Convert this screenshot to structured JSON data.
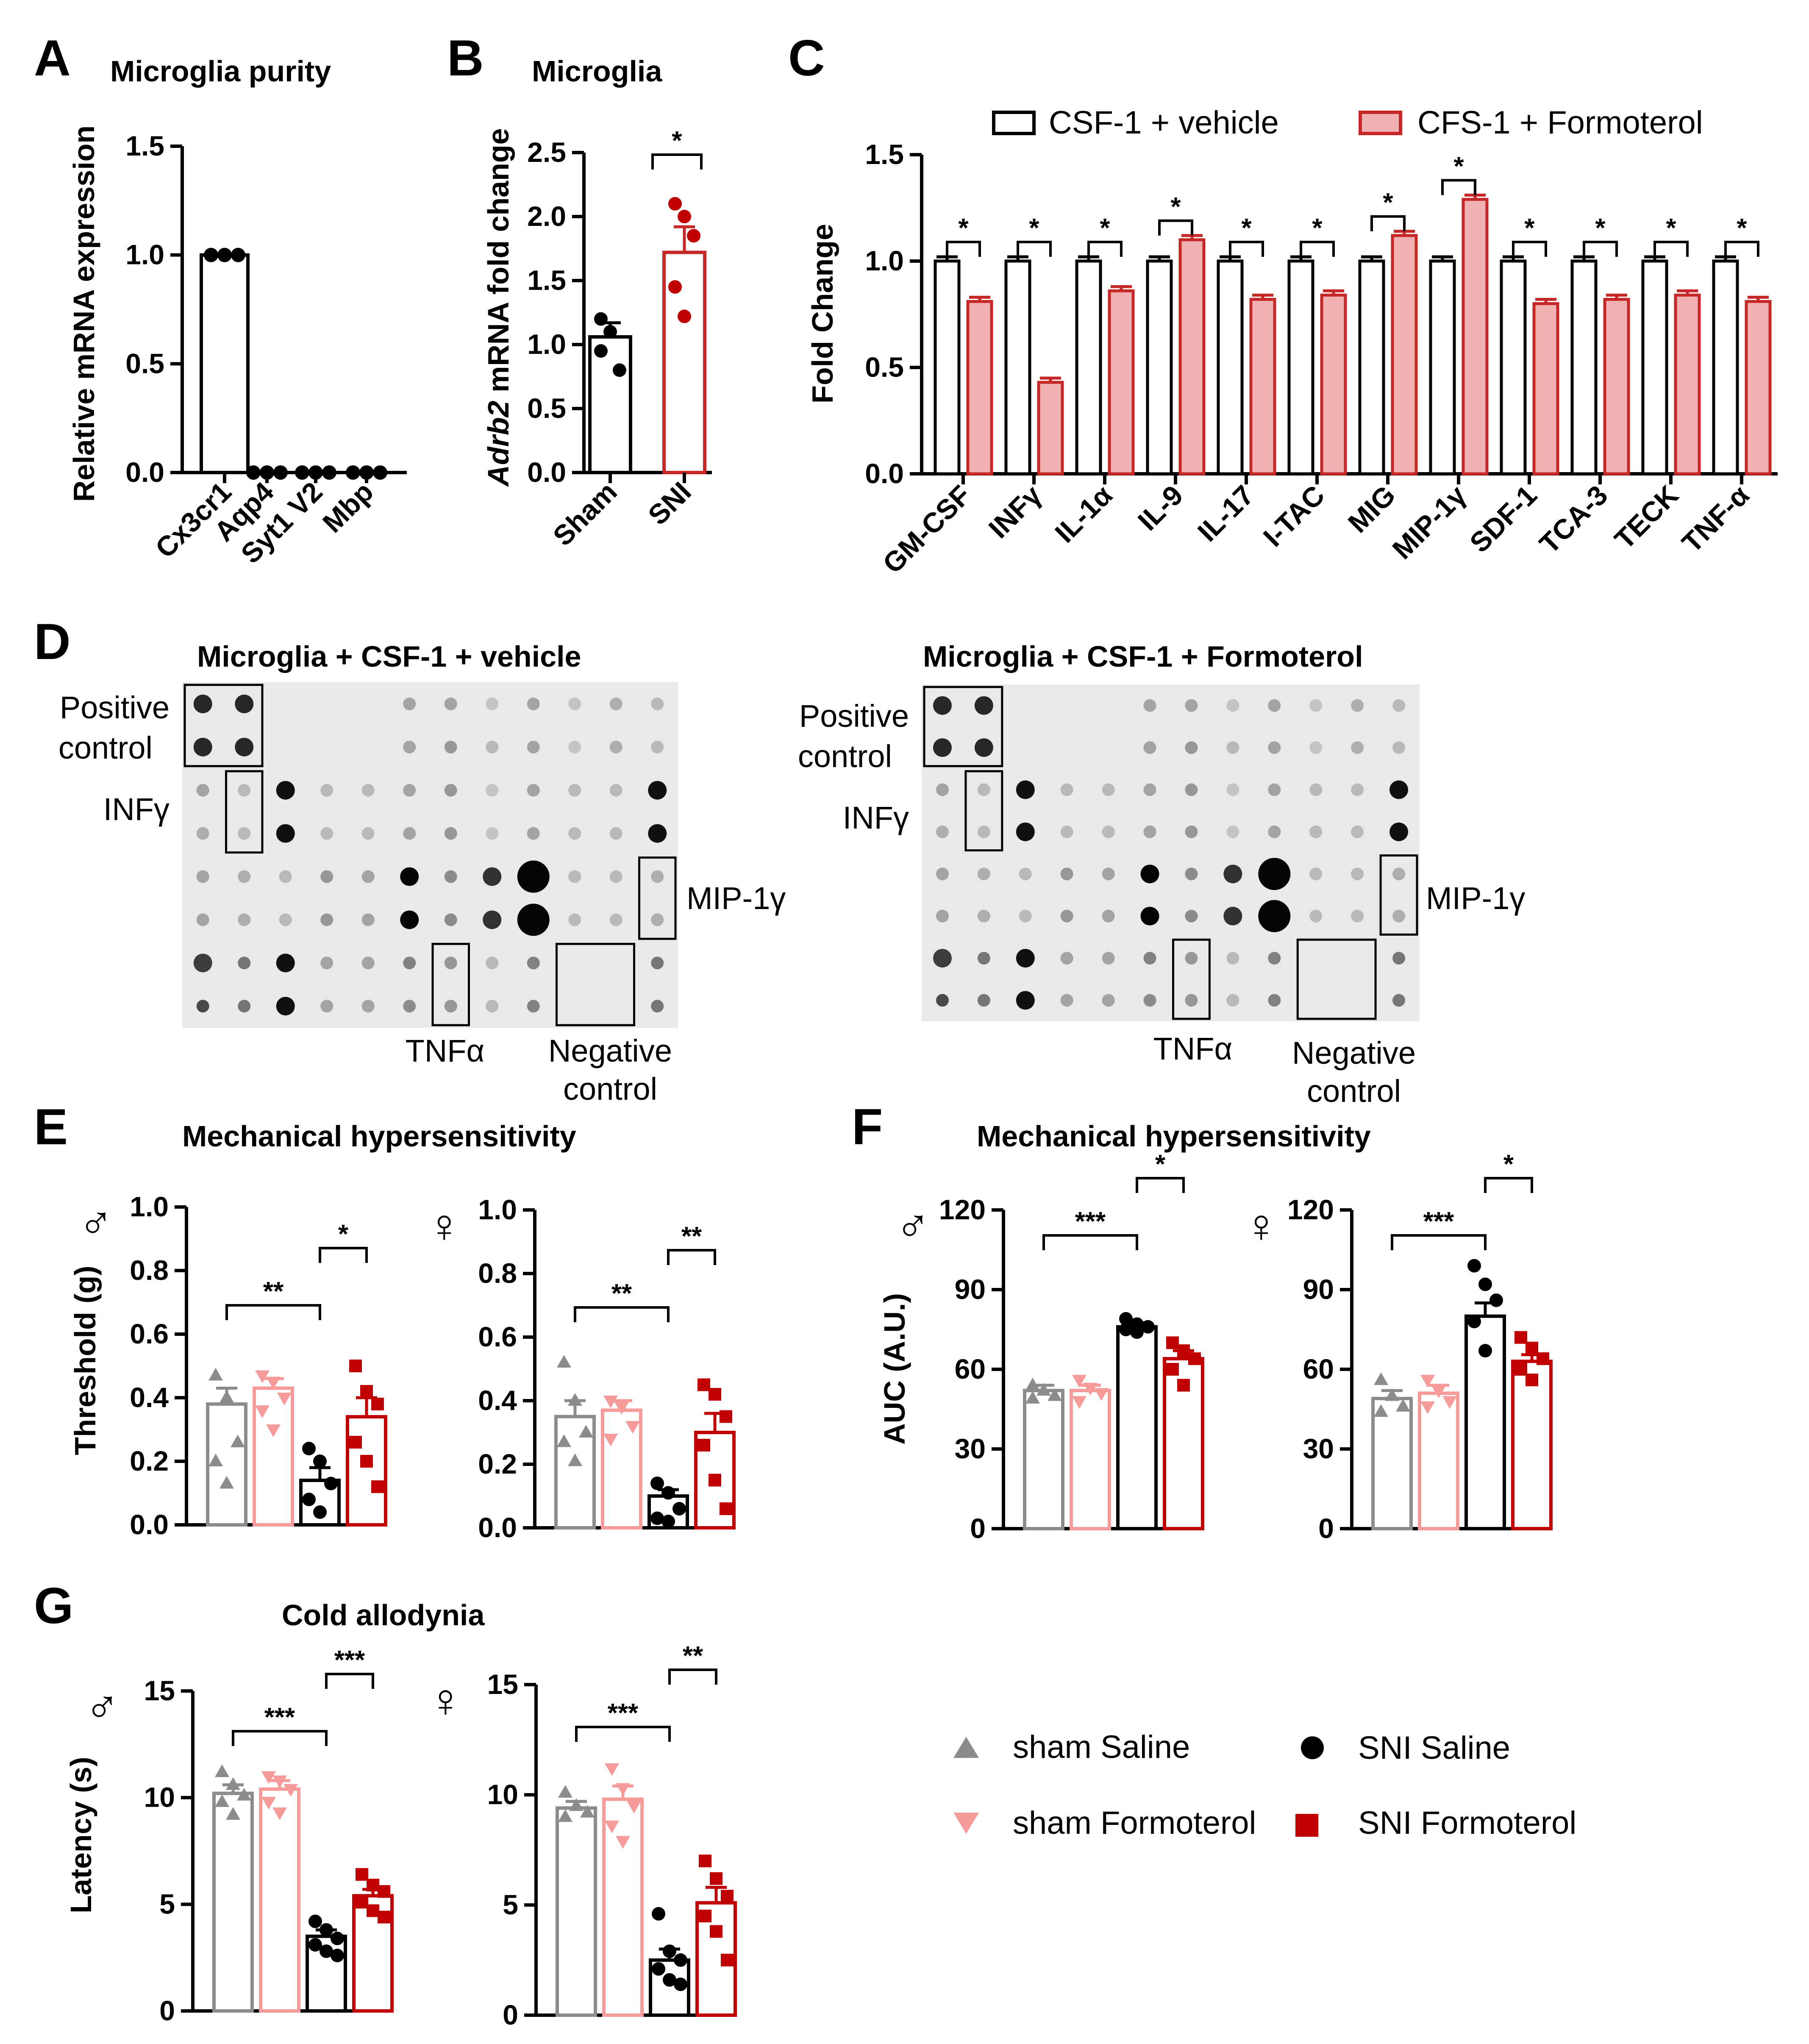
{
  "colors": {
    "sham_saline": "#8c8c8c",
    "sham_formoterol": "#f79a9a",
    "sni_saline": "#000000",
    "sni_formoterol": "#c00000",
    "bar_red": "#c62828",
    "bar_red_fill": "#f0b2b2"
  },
  "panels": {
    "A": "A",
    "B": "B",
    "C": "C",
    "D": "D",
    "E": "E",
    "F": "F",
    "G": "G"
  },
  "sex_symbols": {
    "male": "♂",
    "female": "♀"
  },
  "chart_data": [
    {
      "id": "A",
      "type": "bar",
      "title": "Microglia purity",
      "ylabel": "Relative mRNA expression",
      "ylim": [
        0,
        1.5
      ],
      "yticks": [
        "0.0",
        "0.5",
        "1.0",
        "1.5"
      ],
      "categories": [
        "Cx3cr1",
        "Aqp4",
        "Syt1 V2",
        "Mbp"
      ],
      "values": [
        1.0,
        0.0,
        0.0,
        0.0
      ],
      "points": [
        [
          1.0,
          1.0,
          1.0
        ],
        [
          0,
          0,
          0
        ],
        [
          0,
          0,
          0
        ],
        [
          0,
          0,
          0
        ]
      ]
    },
    {
      "id": "B",
      "type": "bar",
      "title": "Microglia",
      "ylabel_italic": "Adrb2",
      "ylabel": " mRNA fold change",
      "ylim": [
        0,
        2.5
      ],
      "yticks": [
        "0.0",
        "0.5",
        "1.0",
        "1.5",
        "2.0",
        "2.5"
      ],
      "categories": [
        "Sham",
        "SNI"
      ],
      "values": [
        1.06,
        1.72
      ],
      "errors": [
        0.11,
        0.2
      ],
      "points": [
        [
          1.2,
          1.1,
          0.8,
          0.95
        ],
        [
          2.1,
          2.0,
          1.85,
          1.45,
          1.22
        ]
      ],
      "significance": "*"
    },
    {
      "id": "C",
      "type": "bar",
      "ylabel": "Fold Change",
      "ylim": [
        0,
        1.5
      ],
      "yticks": [
        "0.0",
        "0.5",
        "1.0",
        "1.5"
      ],
      "legend": [
        "CSF-1 + vehicle",
        "CFS-1 + Formoterol"
      ],
      "categories": [
        "GM-CSF",
        "INFγ",
        "IL-1α",
        "IL-9",
        "IL-17",
        "I-TAC",
        "MIG",
        "MIP-1γ",
        "SDF-1",
        "TCA-3",
        "TECK",
        "TNF-α"
      ],
      "series": [
        {
          "name": "CSF-1 + vehicle",
          "values": [
            1.0,
            1.0,
            1.0,
            1.0,
            1.0,
            1.0,
            1.0,
            1.0,
            1.0,
            1.0,
            1.0,
            1.0
          ]
        },
        {
          "name": "CFS-1 + Formoterol",
          "values": [
            0.81,
            0.43,
            0.86,
            1.1,
            0.82,
            0.84,
            1.12,
            1.29,
            0.8,
            0.82,
            0.84,
            0.81
          ]
        }
      ],
      "significance": [
        "*",
        "*",
        "*",
        "*",
        "*",
        "*",
        "*",
        "*",
        "*",
        "*",
        "*",
        "*"
      ]
    },
    {
      "id": "E",
      "type": "bar",
      "title": "Mechanical hypersensitivity",
      "ylabel": "Threshold (g)",
      "groups": [
        "sham Saline",
        "sham Formoterol",
        "SNI Saline",
        "SNI Formoterol"
      ],
      "subplots": [
        {
          "sex": "male",
          "ylim": [
            0,
            1.0
          ],
          "yticks": [
            "0.0",
            "0.2",
            "0.4",
            "0.6",
            "0.8",
            "1.0"
          ],
          "values": [
            0.38,
            0.43,
            0.14,
            0.34
          ],
          "errors": [
            0.05,
            0.03,
            0.04,
            0.06
          ],
          "points": [
            [
              0.47,
              0.4,
              0.26,
              0.2,
              0.13
            ],
            [
              0.47,
              0.45,
              0.4,
              0.36,
              0.3
            ],
            [
              0.24,
              0.2,
              0.13,
              0.08,
              0.04
            ],
            [
              0.5,
              0.42,
              0.38,
              0.26,
              0.2,
              0.12
            ]
          ],
          "sig1": "**",
          "sig2": "*"
        },
        {
          "sex": "female",
          "ylim": [
            0,
            1.0
          ],
          "yticks": [
            "0.0",
            "0.2",
            "0.4",
            "0.6",
            "0.8",
            "1.0"
          ],
          "values": [
            0.35,
            0.37,
            0.1,
            0.3
          ],
          "errors": [
            0.05,
            0.03,
            0.02,
            0.06
          ],
          "points": [
            [
              0.52,
              0.4,
              0.3,
              0.27,
              0.21
            ],
            [
              0.4,
              0.38,
              0.32,
              0.28
            ],
            [
              0.14,
              0.11,
              0.06,
              0.03,
              0.02
            ],
            [
              0.45,
              0.42,
              0.35,
              0.26,
              0.15,
              0.06
            ]
          ],
          "sig1": "**",
          "sig2": "**"
        }
      ]
    },
    {
      "id": "F",
      "type": "bar",
      "title": "Mechanical hypersensitivity",
      "ylabel": "AUC (A.U.)",
      "groups": [
        "sham Saline",
        "sham Formoterol",
        "SNI Saline",
        "SNI Formoterol"
      ],
      "subplots": [
        {
          "sex": "male",
          "ylim": [
            0,
            120
          ],
          "yticks": [
            "0",
            "30",
            "60",
            "90",
            "120"
          ],
          "values": [
            52,
            52,
            76,
            64
          ],
          "errors": [
            2,
            2,
            1.5,
            3
          ],
          "points": [
            [
              54,
              52,
              50,
              49
            ],
            [
              56,
              53,
              51,
              48
            ],
            [
              79,
              77,
              76,
              75,
              74
            ],
            [
              70,
              67,
              64,
              60,
              54
            ]
          ],
          "sig1": "***",
          "sig2": "*"
        },
        {
          "sex": "female",
          "ylim": [
            0,
            120
          ],
          "yticks": [
            "0",
            "30",
            "60",
            "90",
            "120"
          ],
          "values": [
            49,
            51,
            80,
            63
          ],
          "errors": [
            3,
            3,
            5,
            2.5
          ],
          "points": [
            [
              56,
              50,
              46,
              44
            ],
            [
              56,
              52,
              48,
              46
            ],
            [
              99,
              92,
              86,
              78,
              67
            ],
            [
              72,
              68,
              64,
              60,
              56
            ]
          ],
          "sig1": "***",
          "sig2": "*"
        }
      ]
    },
    {
      "id": "G",
      "type": "bar",
      "title": "Cold allodynia",
      "ylabel": "Latency (s)",
      "groups": [
        "sham Saline",
        "sham Formoterol",
        "SNI Saline",
        "SNI Formoterol"
      ],
      "subplots": [
        {
          "sex": "male",
          "ylim": [
            0,
            15
          ],
          "yticks": [
            "0",
            "5",
            "10",
            "15"
          ],
          "values": [
            10.2,
            10.4,
            3.5,
            5.4
          ],
          "errors": [
            0.4,
            0.4,
            0.3,
            0.3
          ],
          "points": [
            [
              11.2,
              10.6,
              10.1,
              9.8,
              9.2
            ],
            [
              11.0,
              10.8,
              10.4,
              9.8,
              9.3
            ],
            [
              4.2,
              3.8,
              3.4,
              3.1,
              2.8,
              2.6
            ],
            [
              6.4,
              5.9,
              5.6,
              5.1,
              4.7,
              4.4
            ]
          ],
          "sig1": "***",
          "sig2": "***"
        },
        {
          "sex": "female",
          "ylim": [
            0,
            15
          ],
          "yticks": [
            "0",
            "5",
            "10",
            "15"
          ],
          "values": [
            9.4,
            9.8,
            2.5,
            5.1
          ],
          "errors": [
            0.3,
            0.6,
            0.5,
            0.7
          ],
          "points": [
            [
              10.1,
              9.5,
              9.2,
              9.0
            ],
            [
              11.2,
              10.3,
              9.5,
              8.6,
              7.9
            ],
            [
              4.6,
              2.9,
              2.5,
              2.1,
              1.6,
              1.4
            ],
            [
              7.0,
              6.2,
              5.4,
              4.5,
              3.8,
              2.5
            ]
          ],
          "sig1": "***",
          "sig2": "**"
        }
      ]
    }
  ],
  "blots": {
    "left_title": "Microglia + CSF-1 + vehicle",
    "right_title": "Microglia + CSF-1 + Formoterol",
    "labels": {
      "positive_1": "Positive",
      "positive_2": "control",
      "infg": "INFγ",
      "mip": "MIP-1γ",
      "tnfa": "TNFα",
      "negative_1": "Negative",
      "negative_2": "control"
    }
  },
  "legend_groups": {
    "sham_saline": "sham Saline",
    "sham_formoterol": "sham Formoterol",
    "sni_saline": "SNI Saline",
    "sni_formoterol": "SNI Formoterol"
  }
}
